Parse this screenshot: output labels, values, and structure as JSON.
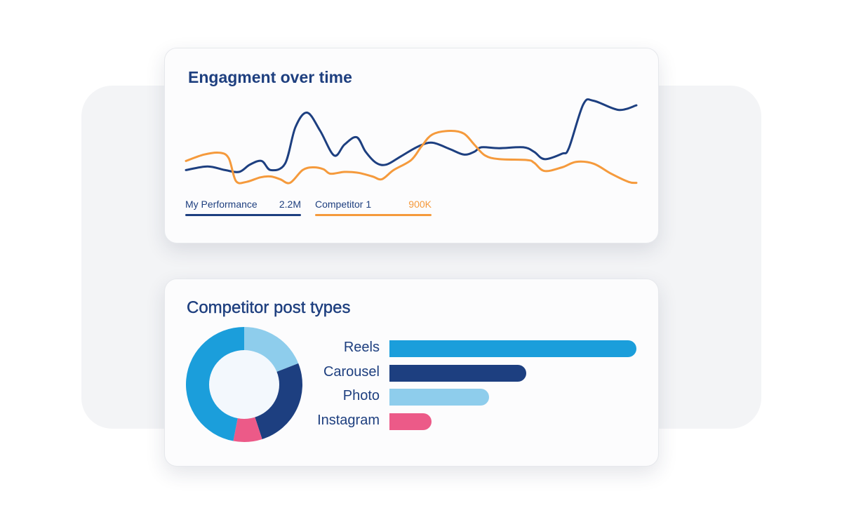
{
  "colors": {
    "navy": "#1d3f80",
    "orange": "#f59a3c",
    "blue": "#1b9edb",
    "light_blue": "#8ecdec",
    "pink": "#ec5a88",
    "donut_center": "#f3f8fd"
  },
  "engagement_card": {
    "title": "Engagment over time",
    "legend": [
      {
        "name": "My Performance",
        "value": "2.2M",
        "color": "#1d3f80"
      },
      {
        "name": "Competitor 1",
        "value": "900K",
        "color": "#f59a3c"
      }
    ]
  },
  "post_types_card": {
    "title": "Competitor post types"
  },
  "chart_data": [
    {
      "type": "line",
      "title": "Engagment over time",
      "xlabel": "",
      "ylabel": "",
      "axes_visible": false,
      "grid": false,
      "legend": "bottom-left",
      "note_scale": "relative (no axis printed)",
      "xlim": [
        0,
        100
      ],
      "ylim": [
        0,
        100
      ],
      "series": [
        {
          "name": "My Performance",
          "color": "#1d3f80",
          "points": [
            [
              0,
              22
            ],
            [
              4.8,
              26
            ],
            [
              8.7,
              22
            ],
            [
              11.8,
              20
            ],
            [
              14.2,
              28
            ],
            [
              16.8,
              32
            ],
            [
              18.8,
              22
            ],
            [
              22,
              29
            ],
            [
              24.3,
              69
            ],
            [
              26.9,
              85
            ],
            [
              29.8,
              65
            ],
            [
              32.9,
              38
            ],
            [
              35.2,
              50
            ],
            [
              37.9,
              58
            ],
            [
              39.9,
              42
            ],
            [
              42.2,
              30
            ],
            [
              44.5,
              28
            ],
            [
              47.7,
              37
            ],
            [
              51.6,
              48
            ],
            [
              54.7,
              52
            ],
            [
              58.6,
              45
            ],
            [
              61.7,
              39
            ],
            [
              64,
              42
            ],
            [
              65.6,
              47
            ],
            [
              69.5,
              46
            ],
            [
              74.9,
              47
            ],
            [
              77.3,
              42
            ],
            [
              79.6,
              34
            ],
            [
              83.5,
              40
            ],
            [
              85,
              46
            ],
            [
              88.2,
              94
            ],
            [
              90.5,
              98
            ],
            [
              96,
              88
            ],
            [
              100,
              93
            ]
          ]
        },
        {
          "name": "Competitor 1",
          "color": "#f59a3c",
          "points": [
            [
              0,
              32
            ],
            [
              4,
              39
            ],
            [
              7.5,
              41
            ],
            [
              9.5,
              35
            ],
            [
              11.1,
              10
            ],
            [
              13.4,
              9
            ],
            [
              16.5,
              14
            ],
            [
              18.8,
              15
            ],
            [
              20.9,
              12
            ],
            [
              23.1,
              8
            ],
            [
              25.9,
              22
            ],
            [
              28.2,
              25
            ],
            [
              30.5,
              23
            ],
            [
              32.1,
              18
            ],
            [
              35.2,
              20
            ],
            [
              38.3,
              19
            ],
            [
              41.4,
              15
            ],
            [
              43.5,
              12
            ],
            [
              46.1,
              22
            ],
            [
              50,
              33
            ],
            [
              52.3,
              48
            ],
            [
              54.7,
              61
            ],
            [
              58.6,
              65
            ],
            [
              61.7,
              62
            ],
            [
              64,
              50
            ],
            [
              66.4,
              38
            ],
            [
              69.5,
              34
            ],
            [
              75.7,
              33
            ],
            [
              77.3,
              30
            ],
            [
              79.6,
              21
            ],
            [
              83.5,
              25
            ],
            [
              86.6,
              31
            ],
            [
              90.5,
              29
            ],
            [
              94.4,
              18
            ],
            [
              98.3,
              9
            ],
            [
              100,
              8
            ]
          ]
        }
      ]
    },
    {
      "type": "pie",
      "title": "Competitor post types",
      "donut": true,
      "slices": [
        {
          "label": "Photo",
          "value": 19,
          "color": "#8ecdec"
        },
        {
          "label": "Carousel",
          "value": 26,
          "color": "#1d3f80"
        },
        {
          "label": "Instagram",
          "value": 8,
          "color": "#ec5a88"
        },
        {
          "label": "Reels",
          "value": 47,
          "color": "#1b9edb"
        }
      ]
    },
    {
      "type": "bar",
      "orientation": "horizontal",
      "title": "Competitor post types",
      "categories": [
        "Reels",
        "Carousel",
        "Photo",
        "Instagram"
      ],
      "values": [
        47,
        26,
        19,
        8
      ],
      "colors": [
        "#1b9edb",
        "#1d3f80",
        "#8ecdec",
        "#ec5a88"
      ],
      "xlim": [
        0,
        47
      ]
    }
  ]
}
